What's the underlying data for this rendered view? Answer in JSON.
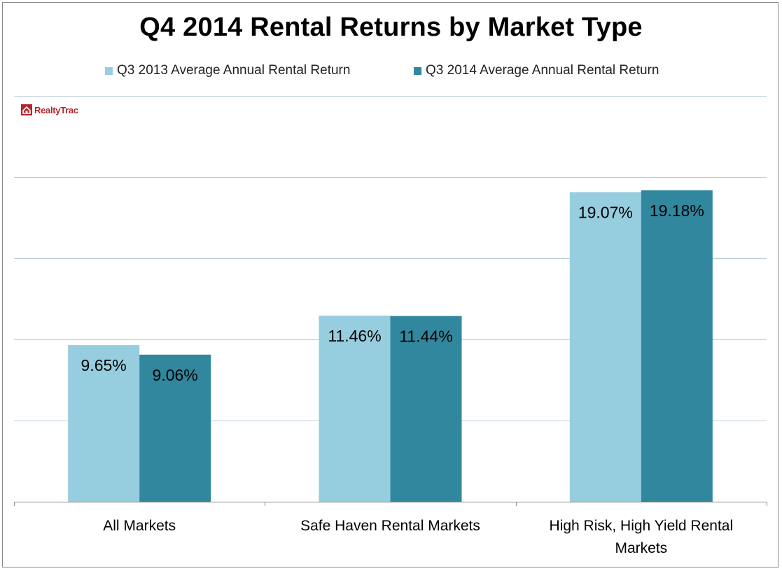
{
  "chart_data": {
    "type": "bar",
    "title": "Q4 2014 Rental Returns by Market Type",
    "categories": [
      "All Markets",
      "Safe Haven Rental Markets",
      "High Risk, High Yield Rental Markets"
    ],
    "category_lines": [
      [
        "All Markets"
      ],
      [
        "Safe Haven Rental Markets"
      ],
      [
        "High Risk, High Yield Rental",
        "Markets"
      ]
    ],
    "series": [
      {
        "name": "Q3 2013 Average Annual Rental Return",
        "values": [
          9.65,
          11.46,
          19.07
        ],
        "labels": [
          "9.65%",
          "11.46%",
          "19.07%"
        ],
        "color": "#96cddf"
      },
      {
        "name": "Q3 2014 Average Annual Rental Return",
        "values": [
          9.06,
          11.44,
          19.18
        ],
        "labels": [
          "9.06%",
          "11.44%",
          "19.18%"
        ],
        "color": "#31879e"
      }
    ],
    "ylim": [
      0,
      25
    ],
    "y_gridlines": [
      5,
      10,
      15,
      20,
      25
    ],
    "grid": true,
    "legend_position": "top",
    "xlabel": "",
    "ylabel": ""
  },
  "brand": {
    "name": "RealtyTrac"
  },
  "colors": {
    "grid": "#b8cdd9",
    "axis": "#8c8c8c",
    "text": "#000000"
  }
}
